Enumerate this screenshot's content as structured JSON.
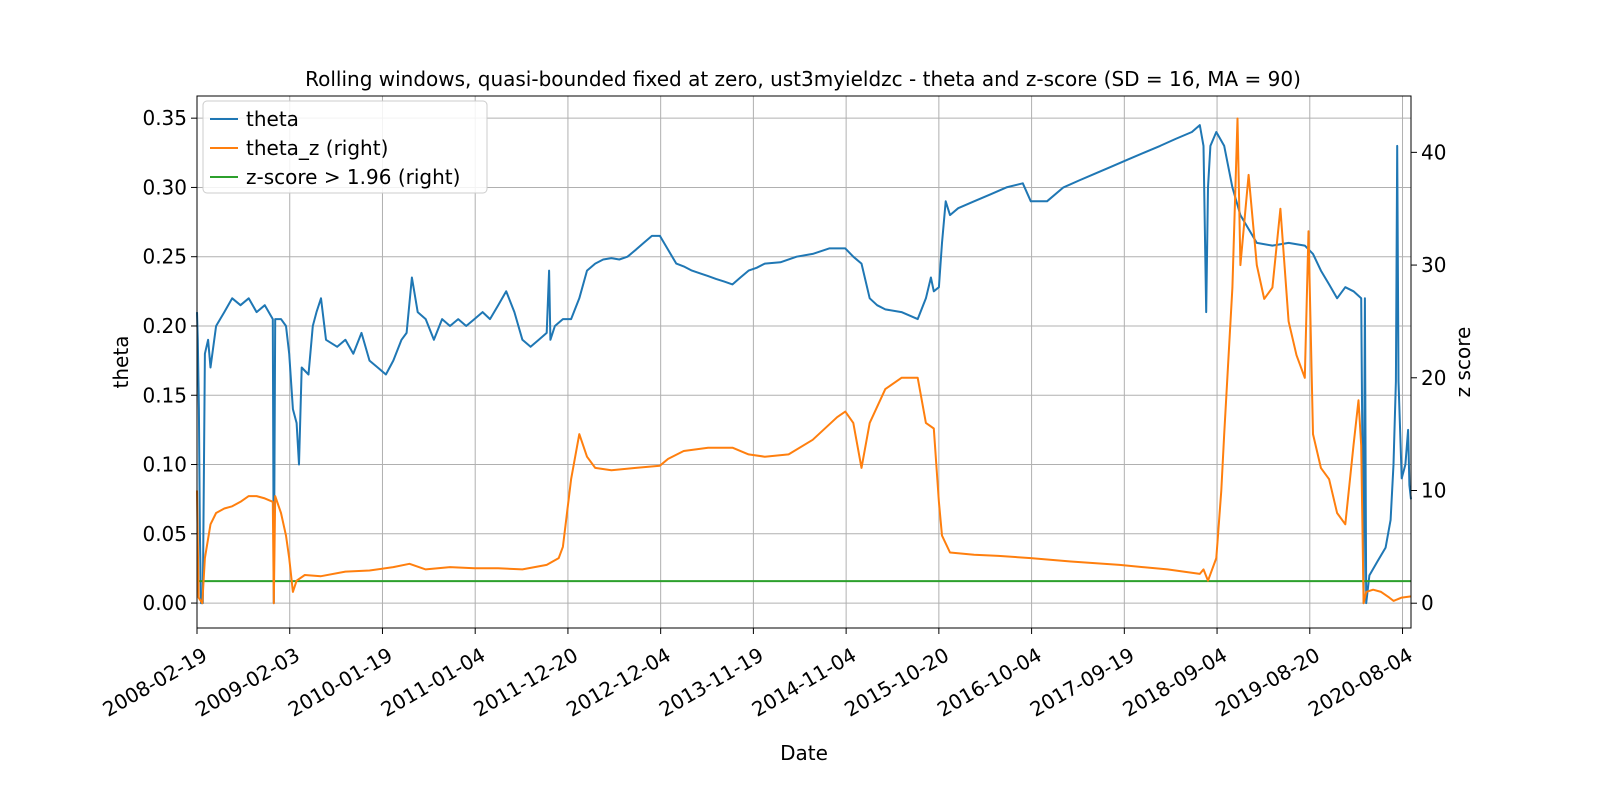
{
  "chart_data": {
    "type": "line",
    "title": "Rolling windows, quasi-bounded fixed at zero, ust3myieldzc - theta and z-score (SD = 16, MA = 90)",
    "xlabel": "Date",
    "ylabel": "theta",
    "y2label": "z score",
    "x_ticks": [
      "2008-02-19",
      "2009-02-03",
      "2010-01-19",
      "2011-01-04",
      "2011-12-20",
      "2012-12-04",
      "2013-11-19",
      "2014-11-04",
      "2015-10-20",
      "2016-10-04",
      "2017-09-19",
      "2018-09-04",
      "2019-08-20",
      "2020-08-04"
    ],
    "xlim": [
      "2008-02-19",
      "2020-09-05"
    ],
    "ylim": [
      -0.018,
      0.366
    ],
    "y_ticks": [
      "0.00",
      "0.05",
      "0.10",
      "0.15",
      "0.20",
      "0.25",
      "0.30",
      "0.35"
    ],
    "y2lim": [
      -2.2,
      45.0
    ],
    "y2_ticks": [
      "0",
      "10",
      "20",
      "30",
      "40"
    ],
    "grid": true,
    "legend_position": "top-left",
    "colors": {
      "theta": "#1f77b4",
      "theta_z": "#ff7f0e",
      "threshold": "#2ca02c"
    },
    "series": [
      {
        "name": "theta",
        "axis": "left",
        "points": [
          [
            "2008-02-19",
            0.21
          ],
          [
            "2008-02-22",
            0.19
          ],
          [
            "2008-02-26",
            0.14
          ],
          [
            "2008-03-01",
            0.05
          ],
          [
            "2008-03-05",
            0.0
          ],
          [
            "2008-03-12",
            0.0
          ],
          [
            "2008-03-20",
            0.18
          ],
          [
            "2008-04-01",
            0.19
          ],
          [
            "2008-04-10",
            0.17
          ],
          [
            "2008-05-01",
            0.2
          ],
          [
            "2008-06-01",
            0.21
          ],
          [
            "2008-07-01",
            0.22
          ],
          [
            "2008-08-01",
            0.215
          ],
          [
            "2008-09-01",
            0.22
          ],
          [
            "2008-10-01",
            0.21
          ],
          [
            "2008-11-01",
            0.215
          ],
          [
            "2008-12-01",
            0.205
          ],
          [
            "2008-12-05",
            0.0
          ],
          [
            "2008-12-10",
            0.205
          ],
          [
            "2009-01-01",
            0.205
          ],
          [
            "2009-01-20",
            0.2
          ],
          [
            "2009-02-01",
            0.18
          ],
          [
            "2009-02-15",
            0.14
          ],
          [
            "2009-03-01",
            0.13
          ],
          [
            "2009-03-10",
            0.1
          ],
          [
            "2009-03-20",
            0.17
          ],
          [
            "2009-04-15",
            0.165
          ],
          [
            "2009-05-01",
            0.2
          ],
          [
            "2009-05-15",
            0.21
          ],
          [
            "2009-06-01",
            0.22
          ],
          [
            "2009-06-20",
            0.19
          ],
          [
            "2009-08-01",
            0.185
          ],
          [
            "2009-09-01",
            0.19
          ],
          [
            "2009-10-01",
            0.18
          ],
          [
            "2009-11-01",
            0.195
          ],
          [
            "2009-12-01",
            0.175
          ],
          [
            "2010-01-01",
            0.17
          ],
          [
            "2010-02-01",
            0.165
          ],
          [
            "2010-03-01",
            0.175
          ],
          [
            "2010-04-01",
            0.19
          ],
          [
            "2010-04-20",
            0.195
          ],
          [
            "2010-05-10",
            0.235
          ],
          [
            "2010-06-01",
            0.21
          ],
          [
            "2010-07-01",
            0.205
          ],
          [
            "2010-08-01",
            0.19
          ],
          [
            "2010-09-01",
            0.205
          ],
          [
            "2010-10-01",
            0.2
          ],
          [
            "2010-11-01",
            0.205
          ],
          [
            "2010-12-01",
            0.2
          ],
          [
            "2011-01-01",
            0.205
          ],
          [
            "2011-02-01",
            0.21
          ],
          [
            "2011-03-01",
            0.205
          ],
          [
            "2011-04-01",
            0.215
          ],
          [
            "2011-05-01",
            0.225
          ],
          [
            "2011-06-01",
            0.21
          ],
          [
            "2011-07-01",
            0.19
          ],
          [
            "2011-08-01",
            0.185
          ],
          [
            "2011-09-01",
            0.19
          ],
          [
            "2011-10-01",
            0.195
          ],
          [
            "2011-10-10",
            0.24
          ],
          [
            "2011-10-15",
            0.19
          ],
          [
            "2011-11-01",
            0.2
          ],
          [
            "2011-12-01",
            0.205
          ],
          [
            "2012-01-01",
            0.205
          ],
          [
            "2012-02-01",
            0.22
          ],
          [
            "2012-03-01",
            0.24
          ],
          [
            "2012-04-01",
            0.245
          ],
          [
            "2012-05-01",
            0.248
          ],
          [
            "2012-06-01",
            0.249
          ],
          [
            "2012-07-01",
            0.248
          ],
          [
            "2012-08-01",
            0.25
          ],
          [
            "2012-09-01",
            0.255
          ],
          [
            "2012-10-01",
            0.26
          ],
          [
            "2012-11-01",
            0.265
          ],
          [
            "2012-12-01",
            0.265
          ],
          [
            "2013-01-01",
            0.255
          ],
          [
            "2013-02-01",
            0.245
          ],
          [
            "2013-03-01",
            0.243
          ],
          [
            "2013-04-01",
            0.24
          ],
          [
            "2013-05-01",
            0.238
          ],
          [
            "2013-06-01",
            0.236
          ],
          [
            "2013-07-01",
            0.234
          ],
          [
            "2013-08-01",
            0.232
          ],
          [
            "2013-09-01",
            0.23
          ],
          [
            "2013-10-01",
            0.235
          ],
          [
            "2013-11-01",
            0.24
          ],
          [
            "2013-12-01",
            0.242
          ],
          [
            "2014-01-01",
            0.245
          ],
          [
            "2014-03-01",
            0.246
          ],
          [
            "2014-05-01",
            0.25
          ],
          [
            "2014-07-01",
            0.252
          ],
          [
            "2014-09-01",
            0.256
          ],
          [
            "2014-11-01",
            0.256
          ],
          [
            "2014-12-01",
            0.25
          ],
          [
            "2015-01-01",
            0.245
          ],
          [
            "2015-02-01",
            0.22
          ],
          [
            "2015-03-01",
            0.215
          ],
          [
            "2015-04-01",
            0.212
          ],
          [
            "2015-06-01",
            0.21
          ],
          [
            "2015-08-01",
            0.205
          ],
          [
            "2015-09-01",
            0.22
          ],
          [
            "2015-09-20",
            0.235
          ],
          [
            "2015-10-01",
            0.225
          ],
          [
            "2015-10-20",
            0.228
          ],
          [
            "2015-11-01",
            0.26
          ],
          [
            "2015-11-15",
            0.29
          ],
          [
            "2015-12-01",
            0.28
          ],
          [
            "2016-01-01",
            0.285
          ],
          [
            "2016-03-01",
            0.29
          ],
          [
            "2016-05-01",
            0.295
          ],
          [
            "2016-07-01",
            0.3
          ],
          [
            "2016-09-01",
            0.303
          ],
          [
            "2016-10-01",
            0.29
          ],
          [
            "2016-12-01",
            0.29
          ],
          [
            "2017-02-01",
            0.3
          ],
          [
            "2017-04-01",
            0.305
          ],
          [
            "2017-06-01",
            0.31
          ],
          [
            "2017-08-01",
            0.315
          ],
          [
            "2017-10-01",
            0.32
          ],
          [
            "2017-12-01",
            0.325
          ],
          [
            "2018-02-01",
            0.33
          ],
          [
            "2018-04-01",
            0.335
          ],
          [
            "2018-06-01",
            0.34
          ],
          [
            "2018-07-01",
            0.345
          ],
          [
            "2018-07-15",
            0.33
          ],
          [
            "2018-07-25",
            0.21
          ],
          [
            "2018-08-01",
            0.3
          ],
          [
            "2018-08-10",
            0.33
          ],
          [
            "2018-09-01",
            0.34
          ],
          [
            "2018-10-01",
            0.33
          ],
          [
            "2018-11-01",
            0.3
          ],
          [
            "2018-12-01",
            0.28
          ],
          [
            "2019-01-01",
            0.27
          ],
          [
            "2019-02-01",
            0.26
          ],
          [
            "2019-04-01",
            0.258
          ],
          [
            "2019-06-01",
            0.26
          ],
          [
            "2019-08-01",
            0.258
          ],
          [
            "2019-09-01",
            0.252
          ],
          [
            "2019-10-01",
            0.24
          ],
          [
            "2019-11-01",
            0.23
          ],
          [
            "2019-12-01",
            0.22
          ],
          [
            "2020-01-01",
            0.228
          ],
          [
            "2020-02-01",
            0.225
          ],
          [
            "2020-03-01",
            0.22
          ],
          [
            "2020-03-10",
            0.0
          ],
          [
            "2020-03-15",
            0.22
          ],
          [
            "2020-03-20",
            0.0
          ],
          [
            "2020-04-01",
            0.02
          ],
          [
            "2020-05-01",
            0.03
          ],
          [
            "2020-06-01",
            0.04
          ],
          [
            "2020-06-20",
            0.06
          ],
          [
            "2020-07-01",
            0.1
          ],
          [
            "2020-07-10",
            0.16
          ],
          [
            "2020-07-15",
            0.33
          ],
          [
            "2020-07-20",
            0.16
          ],
          [
            "2020-08-01",
            0.09
          ],
          [
            "2020-08-15",
            0.1
          ],
          [
            "2020-08-25",
            0.125
          ],
          [
            "2020-08-30",
            0.085
          ],
          [
            "2020-09-05",
            0.075
          ]
        ]
      },
      {
        "name": "theta_z (right)",
        "axis": "right",
        "points": [
          [
            "2008-02-19",
            10.0
          ],
          [
            "2008-02-25",
            0.5
          ],
          [
            "2008-03-10",
            0.0
          ],
          [
            "2008-03-20",
            4.0
          ],
          [
            "2008-04-10",
            7.0
          ],
          [
            "2008-05-01",
            8.0
          ],
          [
            "2008-06-01",
            8.4
          ],
          [
            "2008-07-01",
            8.6
          ],
          [
            "2008-08-01",
            9.0
          ],
          [
            "2008-09-01",
            9.5
          ],
          [
            "2008-10-01",
            9.5
          ],
          [
            "2008-11-01",
            9.3
          ],
          [
            "2008-12-01",
            9.0
          ],
          [
            "2008-12-05",
            0.0
          ],
          [
            "2008-12-10",
            9.5
          ],
          [
            "2009-01-01",
            8.0
          ],
          [
            "2009-01-20",
            6.0
          ],
          [
            "2009-02-01",
            4.0
          ],
          [
            "2009-02-15",
            1.0
          ],
          [
            "2009-03-01",
            2.0
          ],
          [
            "2009-04-01",
            2.5
          ],
          [
            "2009-06-01",
            2.4
          ],
          [
            "2009-09-01",
            2.8
          ],
          [
            "2009-12-01",
            2.9
          ],
          [
            "2010-03-01",
            3.2
          ],
          [
            "2010-05-01",
            3.5
          ],
          [
            "2010-07-01",
            3.0
          ],
          [
            "2010-10-01",
            3.2
          ],
          [
            "2011-01-01",
            3.1
          ],
          [
            "2011-04-01",
            3.1
          ],
          [
            "2011-07-01",
            3.0
          ],
          [
            "2011-10-01",
            3.4
          ],
          [
            "2011-11-15",
            4.0
          ],
          [
            "2011-12-01",
            5.0
          ],
          [
            "2012-01-01",
            11.0
          ],
          [
            "2012-02-01",
            15.0
          ],
          [
            "2012-03-01",
            13.0
          ],
          [
            "2012-04-01",
            12.0
          ],
          [
            "2012-06-01",
            11.8
          ],
          [
            "2012-09-01",
            12.0
          ],
          [
            "2012-12-01",
            12.2
          ],
          [
            "2013-01-01",
            12.8
          ],
          [
            "2013-03-01",
            13.5
          ],
          [
            "2013-06-01",
            13.8
          ],
          [
            "2013-09-01",
            13.8
          ],
          [
            "2013-11-01",
            13.2
          ],
          [
            "2014-01-01",
            13.0
          ],
          [
            "2014-04-01",
            13.2
          ],
          [
            "2014-07-01",
            14.5
          ],
          [
            "2014-10-01",
            16.5
          ],
          [
            "2014-11-01",
            17.0
          ],
          [
            "2014-12-01",
            16.0
          ],
          [
            "2015-01-01",
            12.0
          ],
          [
            "2015-02-01",
            16.0
          ],
          [
            "2015-04-01",
            19.0
          ],
          [
            "2015-06-01",
            20.0
          ],
          [
            "2015-08-01",
            20.0
          ],
          [
            "2015-09-01",
            16.0
          ],
          [
            "2015-10-01",
            15.5
          ],
          [
            "2015-10-20",
            9.0
          ],
          [
            "2015-11-01",
            6.0
          ],
          [
            "2015-12-01",
            4.5
          ],
          [
            "2016-03-01",
            4.3
          ],
          [
            "2016-06-01",
            4.2
          ],
          [
            "2016-10-01",
            4.0
          ],
          [
            "2017-03-01",
            3.7
          ],
          [
            "2017-09-01",
            3.4
          ],
          [
            "2018-03-01",
            3.0
          ],
          [
            "2018-07-01",
            2.6
          ],
          [
            "2018-07-15",
            3.0
          ],
          [
            "2018-08-01",
            2.0
          ],
          [
            "2018-09-01",
            4.0
          ],
          [
            "2018-09-20",
            10.0
          ],
          [
            "2018-10-01",
            15.0
          ],
          [
            "2018-11-01",
            28.0
          ],
          [
            "2018-11-20",
            43.0
          ],
          [
            "2018-12-01",
            30.0
          ],
          [
            "2019-01-01",
            38.0
          ],
          [
            "2019-02-01",
            30.0
          ],
          [
            "2019-03-01",
            27.0
          ],
          [
            "2019-04-01",
            28.0
          ],
          [
            "2019-05-01",
            35.0
          ],
          [
            "2019-06-01",
            25.0
          ],
          [
            "2019-07-01",
            22.0
          ],
          [
            "2019-08-01",
            20.0
          ],
          [
            "2019-08-15",
            33.0
          ],
          [
            "2019-09-01",
            15.0
          ],
          [
            "2019-10-01",
            12.0
          ],
          [
            "2019-11-01",
            11.0
          ],
          [
            "2019-12-01",
            8.0
          ],
          [
            "2020-01-01",
            7.0
          ],
          [
            "2020-02-01",
            14.0
          ],
          [
            "2020-02-20",
            18.0
          ],
          [
            "2020-03-01",
            14.0
          ],
          [
            "2020-03-10",
            0.0
          ],
          [
            "2020-03-20",
            1.0
          ],
          [
            "2020-04-15",
            1.2
          ],
          [
            "2020-05-15",
            1.0
          ],
          [
            "2020-06-15",
            0.5
          ],
          [
            "2020-07-01",
            0.2
          ],
          [
            "2020-08-01",
            0.5
          ],
          [
            "2020-09-05",
            0.6
          ]
        ]
      },
      {
        "name": "z-score > 1.96 (right)",
        "axis": "right",
        "points": [
          [
            "2008-02-19",
            1.96
          ],
          [
            "2020-09-05",
            1.96
          ]
        ]
      }
    ]
  }
}
